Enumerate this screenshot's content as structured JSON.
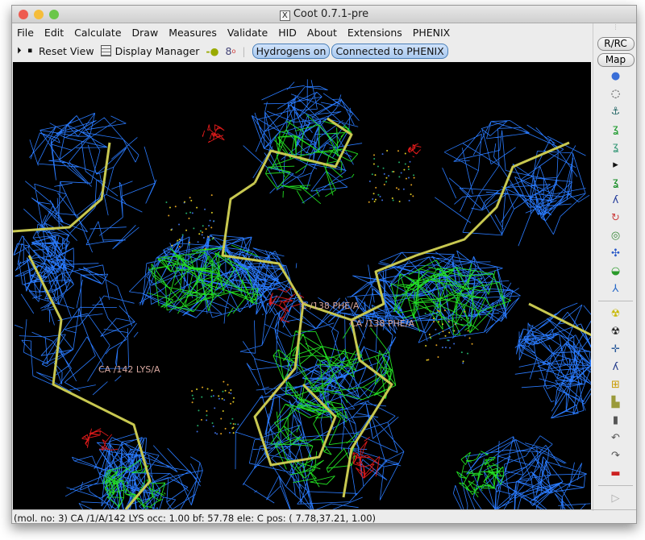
{
  "window": {
    "title": "Coot 0.7.1-pre"
  },
  "menu": [
    "File",
    "Edit",
    "Calculate",
    "Draw",
    "Measures",
    "Validate",
    "HID",
    "About",
    "Extensions",
    "PHENIX"
  ],
  "toolbar": {
    "reset_view": "Reset View",
    "display_manager": "Display Manager",
    "hydrogens": "Hydrogens on",
    "phenix": "Connected to PHENIX"
  },
  "side": {
    "rrc": "R/RC",
    "map": "Map",
    "icons": [
      "rotate-translate-icon",
      "rotate-translate-residue-icon",
      "anchor-icon",
      "real-space-refine-icon",
      "regularize-icon",
      "expand-arrow-icon",
      "rigid-body-fit-icon",
      "backbone-icon",
      "rotamer-icon",
      "auto-fit-rotamer-icon",
      "edit-chi-angles-icon",
      "side-chain-180-icon",
      "torsion-general-icon"
    ],
    "icons2": [
      "mutate-icon",
      "mutate-autofit-icon",
      "add-terminal-residue-icon",
      "add-alt-conf-icon",
      "place-atom-icon",
      "pepflip-icon",
      "delete-icon",
      "undo-icon",
      "redo-icon",
      "flag-icon"
    ]
  },
  "viewport": {
    "labels": [
      "C /138 PHE/A",
      "CA /138 PHE/A",
      "CA /142 LYS/A"
    ],
    "colors": {
      "map": "#2a7bff",
      "diff_pos": "#22dd22",
      "diff_neg": "#dd1a1a",
      "bonds": "#c8c850"
    }
  },
  "status": "(mol. no: 3)  CA /1/A/142 LYS occ:  1.00 bf: 57.78 ele:  C pos: ( 7.78,37.21, 1.00)"
}
